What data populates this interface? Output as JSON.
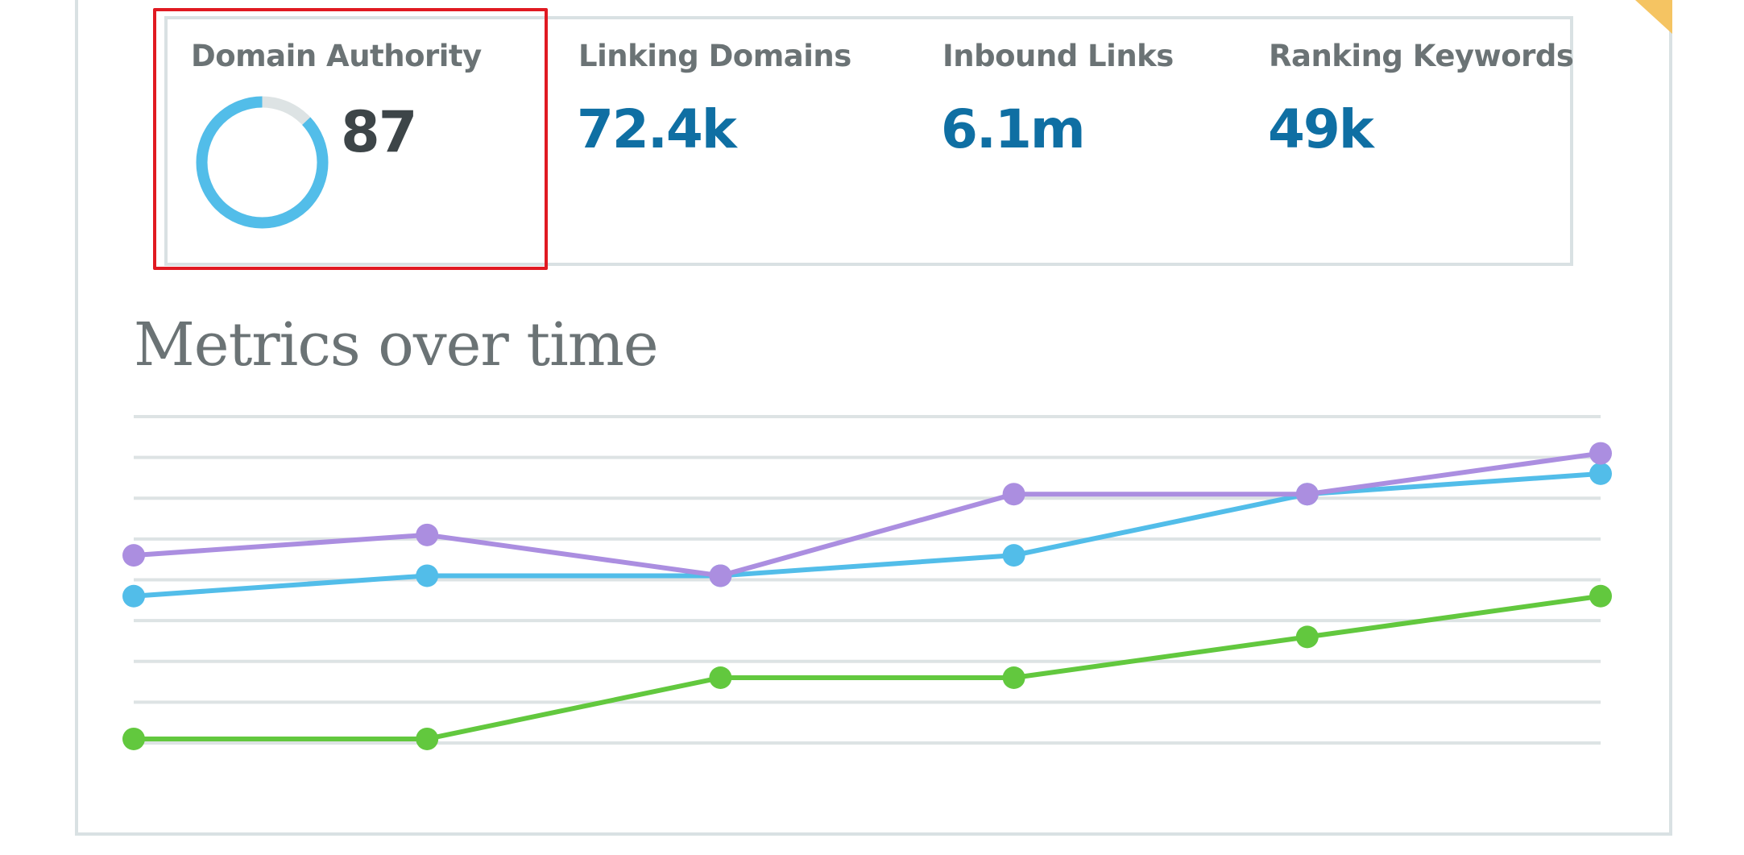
{
  "stats": {
    "domain_authority": {
      "label": "Domain Authority",
      "value": "87",
      "fraction": 0.87
    },
    "linking_domains": {
      "label": "Linking Domains",
      "value": "72.4k"
    },
    "inbound_links": {
      "label": "Inbound Links",
      "value": "6.1m"
    },
    "ranking_keywords": {
      "label": "Ranking Keywords",
      "value": "49k"
    }
  },
  "section_title": "Metrics over time",
  "colors": {
    "purple": "#ab8ee0",
    "blue": "#52bde9",
    "green": "#62c83e",
    "value_blue": "#0f6fa3",
    "donut_track": "#dde3e4",
    "highlight": "#e01a22",
    "ribbon": "#f5c462"
  },
  "chart_data": {
    "type": "line",
    "x": [
      1,
      2,
      3,
      4,
      5,
      6
    ],
    "ylim": [
      0,
      8
    ],
    "grid": true,
    "series": [
      {
        "values": [
          4.6,
          5.1,
          4.1,
          6.1,
          6.1,
          7.1
        ],
        "color": "#ab8ee0"
      },
      {
        "values": [
          3.6,
          4.1,
          4.1,
          4.6,
          6.1,
          6.6
        ],
        "color": "#52bde9"
      },
      {
        "values": [
          0.1,
          0.1,
          1.6,
          1.6,
          2.6,
          3.6
        ],
        "color": "#62c83e"
      }
    ]
  }
}
